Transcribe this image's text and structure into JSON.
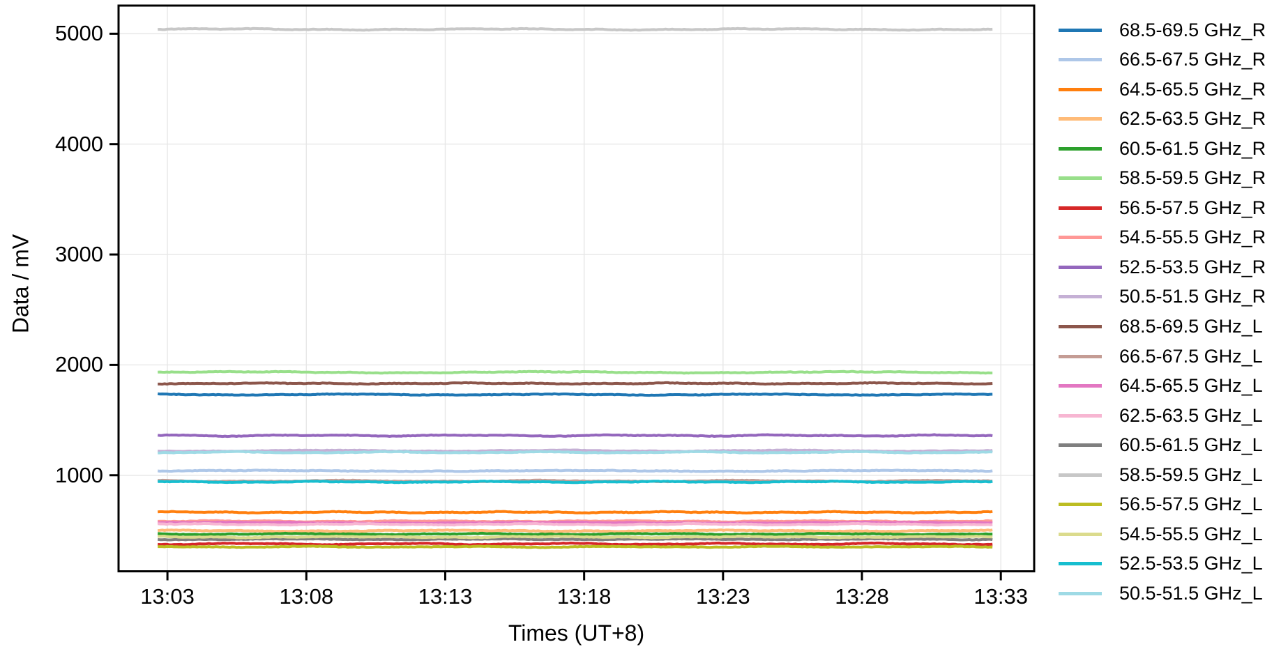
{
  "figure": {
    "background_color": "#ffffff",
    "frame_color": "#000000",
    "grid_color": "#e7e7e7"
  },
  "chart_data": {
    "type": "line",
    "title": "",
    "xlabel": "Times (UT+8)",
    "ylabel": "Data / mV",
    "x_tick_labels": [
      "13:03",
      "13:08",
      "13:13",
      "13:18",
      "13:23",
      "13:28",
      "13:33"
    ],
    "x_tick_minutes": [
      3,
      8,
      13,
      18,
      23,
      28,
      33
    ],
    "y_ticks": [
      1000,
      2000,
      3000,
      4000,
      5000
    ],
    "xlim_minutes_after_1300": [
      1.24,
      34.2
    ],
    "ylim": [
      130,
      5255
    ],
    "data_x_range_minutes_after_1300": [
      2.65,
      32.7
    ],
    "grid": true,
    "legend_position": "right-outside",
    "series": [
      {
        "name": "68.5-69.5 GHz_R",
        "color": "#1f77b4",
        "value_mV": 1731
      },
      {
        "name": "66.5-67.5 GHz_R",
        "color": "#aec7e8",
        "value_mV": 1040
      },
      {
        "name": "64.5-65.5 GHz_R",
        "color": "#ff7f0e",
        "value_mV": 665
      },
      {
        "name": "62.5-63.5 GHz_R",
        "color": "#ffbb78",
        "value_mV": 497
      },
      {
        "name": "60.5-61.5 GHz_R",
        "color": "#2ca02c",
        "value_mV": 468
      },
      {
        "name": "58.5-59.5 GHz_R",
        "color": "#98df8a",
        "value_mV": 1933
      },
      {
        "name": "56.5-57.5 GHz_R",
        "color": "#d62728",
        "value_mV": 378
      },
      {
        "name": "54.5-55.5 GHz_R",
        "color": "#ff9896",
        "value_mV": 583
      },
      {
        "name": "52.5-53.5 GHz_R",
        "color": "#9467bd",
        "value_mV": 1360
      },
      {
        "name": "50.5-51.5 GHz_R",
        "color": "#c5b0d5",
        "value_mV": 1222
      },
      {
        "name": "68.5-69.5 GHz_L",
        "color": "#8c564b",
        "value_mV": 1832
      },
      {
        "name": "66.5-67.5 GHz_L",
        "color": "#c49c94",
        "value_mV": 948
      },
      {
        "name": "64.5-65.5 GHz_L",
        "color": "#e377c2",
        "value_mV": 570
      },
      {
        "name": "62.5-63.5 GHz_L",
        "color": "#f7b6d2",
        "value_mV": 556
      },
      {
        "name": "60.5-61.5 GHz_L",
        "color": "#7f7f7f",
        "value_mV": 420
      },
      {
        "name": "58.5-59.5 GHz_L",
        "color": "#c7c7c7",
        "value_mV": 5040
      },
      {
        "name": "56.5-57.5 GHz_L",
        "color": "#bcbd22",
        "value_mV": 352
      },
      {
        "name": "54.5-55.5 GHz_L",
        "color": "#dbdb8d",
        "value_mV": 441
      },
      {
        "name": "52.5-53.5 GHz_L",
        "color": "#17becf",
        "value_mV": 940
      },
      {
        "name": "50.5-51.5 GHz_L",
        "color": "#9edae5",
        "value_mV": 1208
      }
    ]
  }
}
